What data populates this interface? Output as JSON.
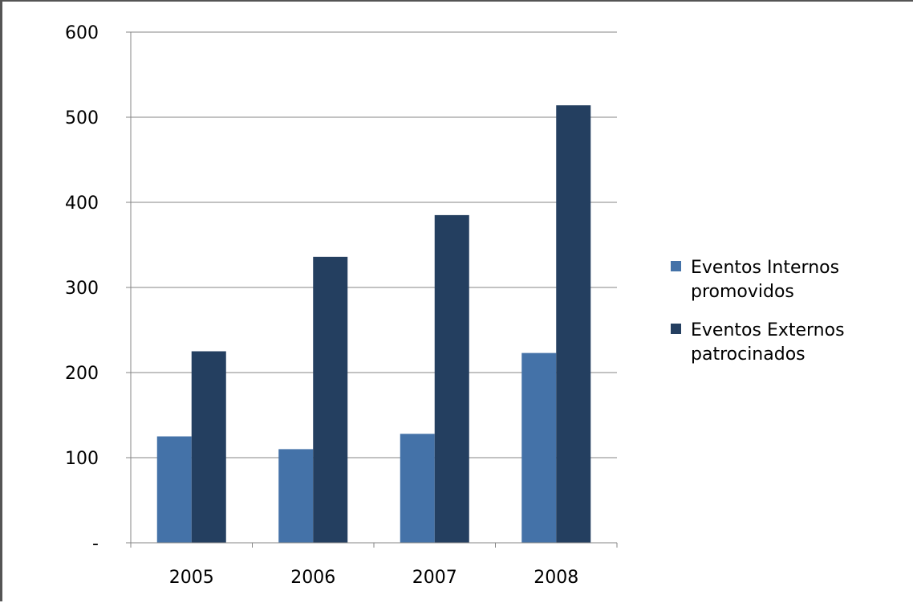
{
  "chart_data": {
    "type": "bar",
    "categories": [
      "2005",
      "2006",
      "2007",
      "2008"
    ],
    "series": [
      {
        "name": "Eventos Internos promovidos",
        "name_lines": [
          "Eventos Internos",
          "promovidos"
        ],
        "color": "#4472A8",
        "values": [
          125,
          110,
          128,
          223
        ]
      },
      {
        "name": "Eventos Externos patrocinados",
        "name_lines": [
          "Eventos Externos",
          "patrocinados"
        ],
        "color": "#243F60",
        "values": [
          225,
          336,
          385,
          514
        ]
      }
    ],
    "ylim": [
      0,
      600
    ],
    "yticks": [
      0,
      100,
      200,
      300,
      400,
      500,
      600
    ],
    "ytick_labels": [
      "-",
      "100",
      "200",
      "300",
      "400",
      "500",
      "600"
    ],
    "grid": true,
    "legend_position": "right",
    "title": "",
    "xlabel": "",
    "ylabel": ""
  }
}
